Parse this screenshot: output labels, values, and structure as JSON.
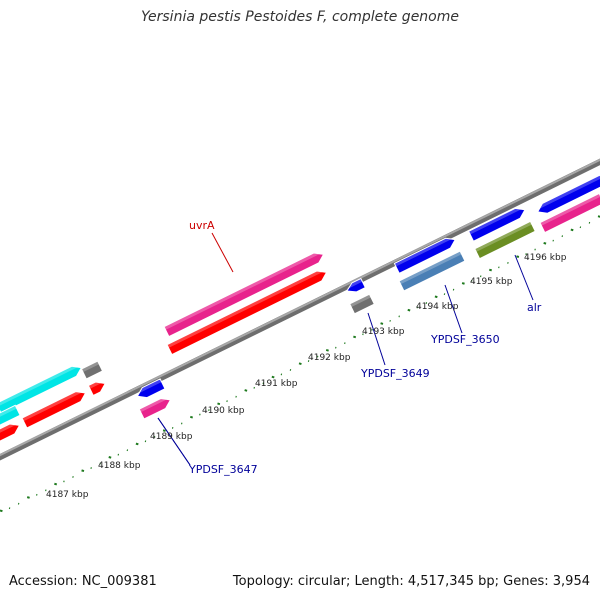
{
  "title": "Yersinia pestis Pestoides F, complete genome",
  "footer": {
    "accession": "Accession: NC_009381",
    "summary": "Topology: circular; Length: 4,517,345 bp; Genes: 3,954"
  },
  "colors": {
    "backbone": "#8a8a8a",
    "ticks": "#1f7a1f",
    "label_red": "#cc0000",
    "label_blue": "#000099"
  },
  "scale_labels": [
    "4187 kbp",
    "4188 kbp",
    "4189 kbp",
    "4190 kbp",
    "4191 kbp",
    "4192 kbp",
    "4193 kbp",
    "4194 kbp",
    "4195 kbp",
    "4196 kbp"
  ],
  "gene_labels": {
    "uvrA": "uvrA",
    "ypdsf_3647": "YPDSF_3647",
    "ypdsf_3649": "YPDSF_3649",
    "ypdsf_3650": "YPDSF_3650",
    "alr": "alr"
  },
  "feature_colors": {
    "magenta": "#e8238c",
    "red": "#ff0000",
    "cyan": "#00e5e5",
    "blue": "#0000ee",
    "gray": "#707070",
    "steelblue": "#4a7fb5",
    "olive": "#6b8e23"
  }
}
